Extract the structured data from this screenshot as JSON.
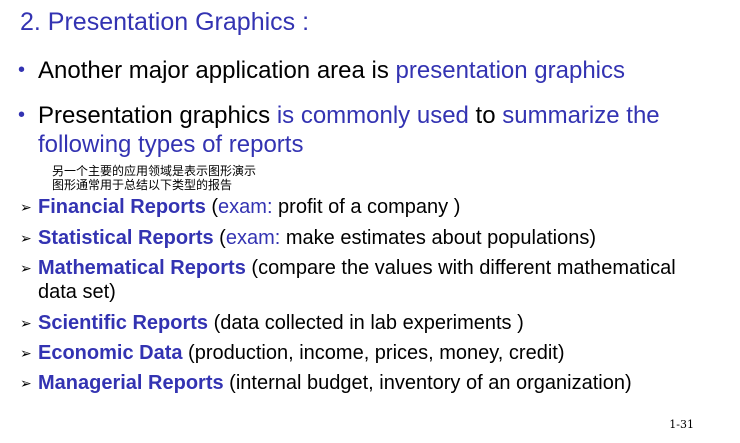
{
  "title": "2. Presentation Graphics :",
  "bullet1": {
    "part1": "Another major application area is ",
    "part2": "presentation graphics"
  },
  "bullet2": {
    "part1": "Presentation graphics ",
    "part2": "is commonly used",
    "part3": " to ",
    "part4": "summarize the following types of reports"
  },
  "chinese_lines": [
    "另一个主要的应用领域是表示图形演示",
    "图形通常用于总结以下类型的报告"
  ],
  "items": [
    {
      "head": "Financial Reports",
      "pre": " (",
      "blue_detail": "exam:",
      "detail": " profit of a company )"
    },
    {
      "head": "Statistical Reports",
      "pre": " (",
      "blue_detail": "exam:",
      "detail": " make estimates about populations)"
    },
    {
      "head": "Mathematical Reports",
      "pre": " (",
      "blue_detail": "",
      "detail": "compare the values with different mathematical data set)"
    },
    {
      "head": "Scientific Reports",
      "pre": " (",
      "blue_detail": "",
      "detail": "data collected in lab experiments )"
    },
    {
      "head": "Economic Data",
      "pre": " (",
      "blue_detail": "",
      "detail": "production, income, prices, money, credit)"
    },
    {
      "head": "Managerial Reports",
      "pre": " (",
      "blue_detail": "",
      "detail": "internal budget, inventory of an organization)"
    }
  ],
  "page_number": "1-31",
  "colors": {
    "accent": "#3333b2",
    "text": "#000000"
  }
}
